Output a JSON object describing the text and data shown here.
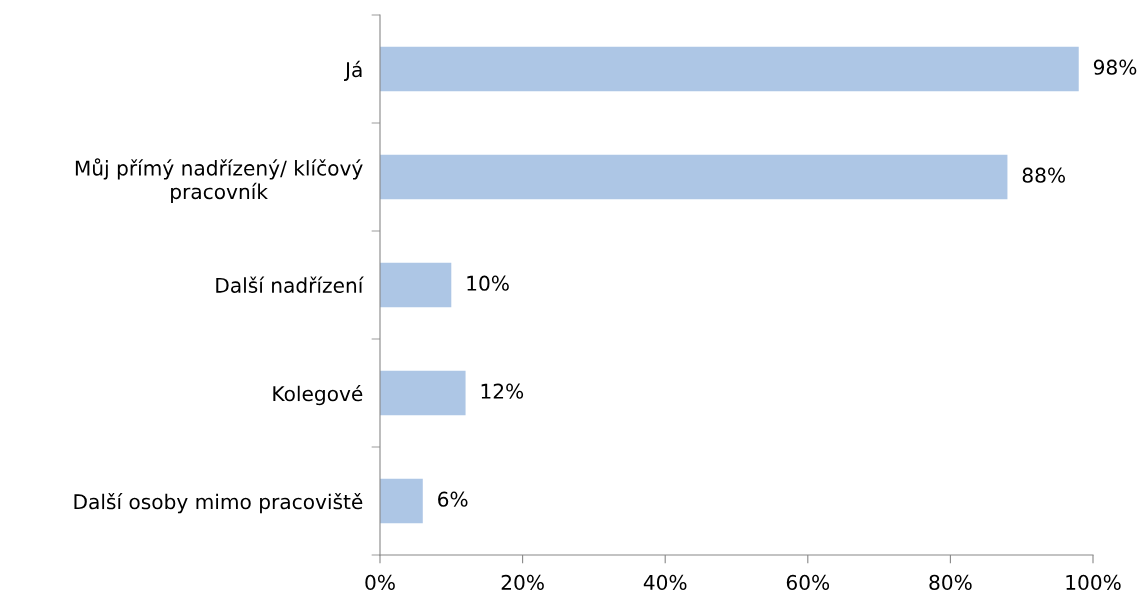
{
  "chart_data": {
    "type": "bar",
    "orientation": "horizontal",
    "categories": [
      "Já",
      "Můj přímý nadřízený/ klíčový\npracovník",
      "Další nadřízení",
      "Kolegové",
      "Další osoby mimo pracoviště"
    ],
    "values": [
      98,
      88,
      10,
      12,
      6
    ],
    "value_labels": [
      "98%",
      "88%",
      "10%",
      "12%",
      "6%"
    ],
    "color": "#adc6e5",
    "xlim": [
      0,
      100
    ],
    "xticks": [
      {
        "value": 0,
        "label": "0%"
      },
      {
        "value": 20,
        "label": "20%"
      },
      {
        "value": 40,
        "label": "40%"
      },
      {
        "value": 60,
        "label": "60%"
      },
      {
        "value": 80,
        "label": "80%"
      },
      {
        "value": 100,
        "label": "100%"
      }
    ],
    "grid": false,
    "legend": false
  }
}
